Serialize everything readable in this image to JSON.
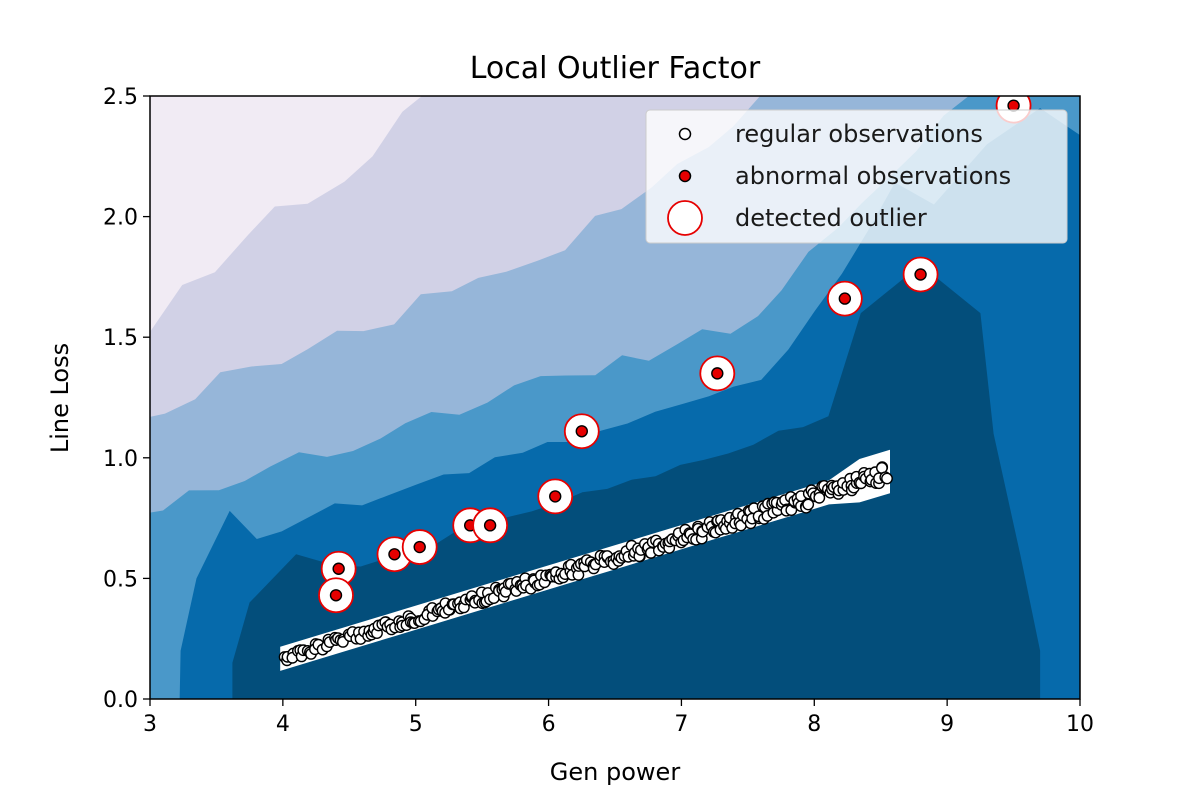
{
  "chart_data": {
    "type": "scatter",
    "title": "Local Outlier Factor",
    "xlabel": "Gen  power",
    "ylabel": "Line  Loss",
    "xlim": [
      3,
      10
    ],
    "ylim": [
      0,
      2.5
    ],
    "x_ticks": [
      "3",
      "4",
      "5",
      "6",
      "7",
      "8",
      "9",
      "10"
    ],
    "y_ticks": [
      "0.0",
      "0.5",
      "1.0",
      "1.5",
      "2.0",
      "2.5"
    ],
    "grid": false,
    "legend_position": "top-right",
    "legend": [
      {
        "label": "regular observations",
        "marker": "regular"
      },
      {
        "label": "abnormal observations",
        "marker": "abnormal"
      },
      {
        "label": "detected outlier",
        "marker": "outlier"
      }
    ],
    "background": "filled decision-function contours (Blues palette), darker near the regular data band",
    "colors": {
      "contour_levels": [
        "#f1ebf4",
        "#d1d1e6",
        "#96b6d9",
        "#4a98c9",
        "#066aab",
        "#034e7b"
      ],
      "regular_marker_face": "#ffffff",
      "regular_marker_edge": "#000000",
      "abnormal_marker_face": "#e60000",
      "outlier_ring": "#e60000"
    },
    "regular_band": {
      "x_range": [
        4.0,
        8.55
      ],
      "y_at_start": 0.17,
      "y_at_end": 0.93,
      "point_count": 300
    },
    "abnormal_points": [
      {
        "x": 4.42,
        "y": 0.54
      },
      {
        "x": 4.4,
        "y": 0.43
      },
      {
        "x": 4.84,
        "y": 0.6
      },
      {
        "x": 5.03,
        "y": 0.63
      },
      {
        "x": 5.41,
        "y": 0.72
      },
      {
        "x": 5.56,
        "y": 0.72
      },
      {
        "x": 6.05,
        "y": 0.84
      },
      {
        "x": 6.25,
        "y": 1.11
      },
      {
        "x": 7.27,
        "y": 1.35
      },
      {
        "x": 8.23,
        "y": 1.66
      },
      {
        "x": 8.8,
        "y": 1.76
      },
      {
        "x": 9.5,
        "y": 2.46
      }
    ]
  }
}
